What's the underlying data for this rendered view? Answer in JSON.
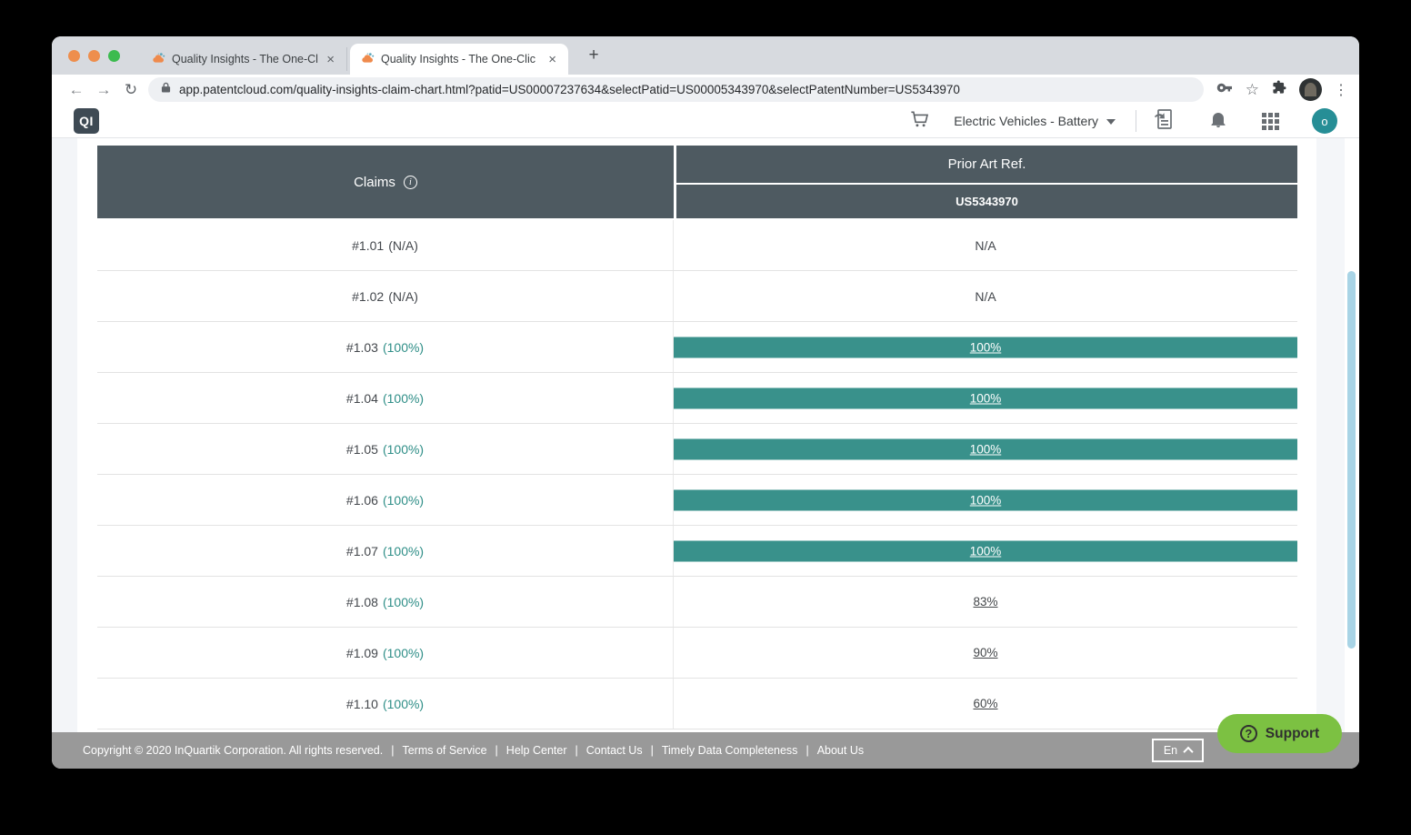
{
  "browser": {
    "tabs": [
      {
        "title": "Quality Insights - The One-Clic",
        "close": "×"
      },
      {
        "title": "Quality Insights - The One-Clic",
        "close": "×"
      }
    ],
    "new_tab": "+",
    "back": "←",
    "forward": "→",
    "reload": "↻",
    "bookmark_star": "☆",
    "menu_dots": "⋮",
    "url": "app.patentcloud.com/quality-insights-claim-chart.html?patid=US00007237634&selectPatid=US00005343970&selectPatentNumber=US5343970"
  },
  "app_bar": {
    "logo": "QI",
    "workspace": "Electric Vehicles - Battery",
    "avatar_initial": "o"
  },
  "table": {
    "claims_header": "Claims",
    "info_icon": "i",
    "prior_art_header": "Prior Art Ref.",
    "prior_art_patent": "US5343970",
    "rows": [
      {
        "claim": "#1.01",
        "score": "(N/A)",
        "value": "N/A",
        "type": "na"
      },
      {
        "claim": "#1.02",
        "score": "(N/A)",
        "value": "N/A",
        "type": "na"
      },
      {
        "claim": "#1.03",
        "score": "(100%)",
        "value": "100%",
        "type": "bar"
      },
      {
        "claim": "#1.04",
        "score": "(100%)",
        "value": "100%",
        "type": "bar"
      },
      {
        "claim": "#1.05",
        "score": "(100%)",
        "value": "100%",
        "type": "bar"
      },
      {
        "claim": "#1.06",
        "score": "(100%)",
        "value": "100%",
        "type": "bar"
      },
      {
        "claim": "#1.07",
        "score": "(100%)",
        "value": "100%",
        "type": "bar"
      },
      {
        "claim": "#1.08",
        "score": "(100%)",
        "value": "83%",
        "type": "link"
      },
      {
        "claim": "#1.09",
        "score": "(100%)",
        "value": "90%",
        "type": "link"
      },
      {
        "claim": "#1.10",
        "score": "(100%)",
        "value": "60%",
        "type": "link"
      }
    ]
  },
  "footer": {
    "copyright": "Copyright © 2020 InQuartik Corporation. All rights reserved.",
    "separator": "|",
    "links": [
      "Terms of Service",
      "Help Center",
      "Contact Us",
      "Timely Data Completeness",
      "About Us"
    ],
    "language": "En"
  },
  "support": {
    "label": "Support",
    "icon": "?"
  },
  "colors": {
    "header_slate": "#4E5A61",
    "bar_teal": "#39918B",
    "score_teal": "#2E8E87",
    "footer_gray": "#999999",
    "support_green": "#7CC142",
    "scrollbar_blue": "#A8D4E6",
    "avatar_teal": "#268E96"
  }
}
